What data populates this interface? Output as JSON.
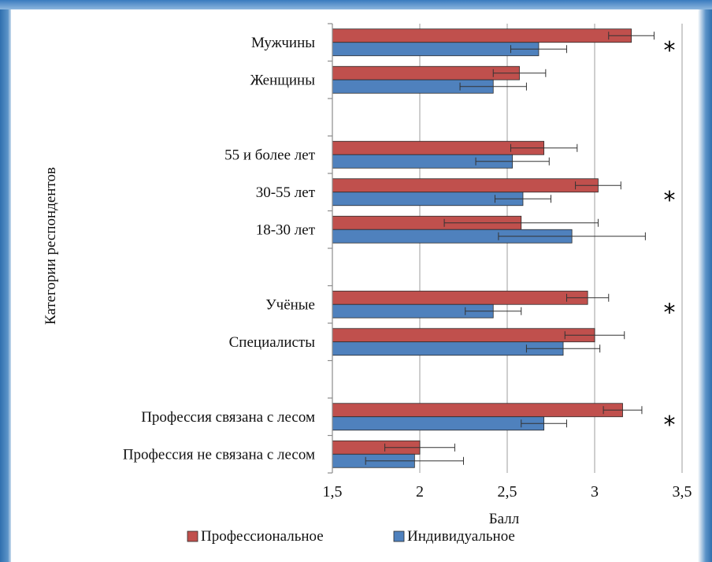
{
  "chart_data": {
    "type": "bar",
    "orientation": "horizontal",
    "ylabel": "Категории респондентов",
    "xlabel": "Балл",
    "xlim": [
      1.5,
      3.5
    ],
    "xticks": [
      "1,5",
      "2",
      "2,5",
      "3",
      "3,5"
    ],
    "grid": true,
    "legend_position": "bottom",
    "categories": [
      "Мужчины",
      "Женщины",
      "55 и более лет",
      "30-55 лет",
      "18-30 лет",
      "Учёные",
      "Специалисты",
      "Профессия связана с лесом",
      "Профессия не связана с лесом"
    ],
    "groups": [
      [
        "Мужчины",
        "Женщины"
      ],
      [
        "55 и более лет",
        "30-55 лет",
        "18-30 лет"
      ],
      [
        "Учёные",
        "Специалисты"
      ],
      [
        "Профессия связана с лесом",
        "Профессия не связана с лесом"
      ]
    ],
    "series": [
      {
        "name": "Профессиональное",
        "color": "#c0504d",
        "values": [
          3.21,
          2.57,
          2.71,
          3.02,
          2.58,
          2.96,
          3.0,
          3.16,
          2.0
        ],
        "errors": [
          0.13,
          0.15,
          0.19,
          0.13,
          0.44,
          0.12,
          0.17,
          0.11,
          0.2
        ]
      },
      {
        "name": "Индивидуальное",
        "color": "#4f81bd",
        "values": [
          2.68,
          2.42,
          2.53,
          2.59,
          2.87,
          2.42,
          2.82,
          2.71,
          1.97
        ],
        "errors": [
          0.16,
          0.19,
          0.21,
          0.16,
          0.42,
          0.16,
          0.21,
          0.13,
          0.28
        ]
      }
    ],
    "significant": [
      "Мужчины",
      "30-55 лет",
      "Учёные",
      "Профессия связана с лесом"
    ],
    "significance_marker": "*"
  }
}
